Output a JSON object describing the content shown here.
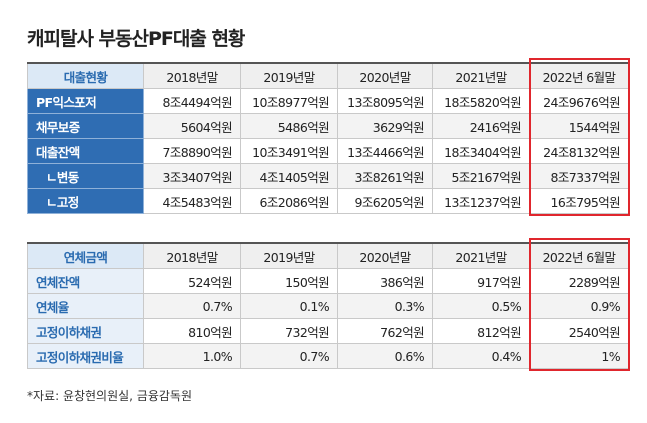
{
  "title": "캐피탈사 부동산PF대출 현황",
  "table1": {
    "header": [
      "대출현황",
      "2018년말",
      "2019년말",
      "2020년말",
      "2021년말",
      "2022년 6월말"
    ],
    "rows": [
      [
        "PF익스포저",
        "8조4494억원",
        "10조8977억원",
        "13조8095억원",
        "18조5820억원",
        "24조9676억원"
      ],
      [
        "채무보증",
        "5604억원",
        "5486억원",
        "3629억원",
        "2416억원",
        "1544억원"
      ],
      [
        "대출잔액",
        "7조8890억원",
        "10조3491억원",
        "13조4466억원",
        "18조3404억원",
        "24조8132억원"
      ],
      [
        "ㄴ변동",
        "3조3407억원",
        "4조1405억원",
        "3조8261억원",
        "5조2167억원",
        "8조7337억원"
      ],
      [
        "ㄴ고정",
        "4조5483억원",
        "6조2086억원",
        "9조6205억원",
        "13조1237억원",
        "16조795억원"
      ]
    ]
  },
  "table2": {
    "header": [
      "연체금액",
      "2018년말",
      "2019년말",
      "2020년말",
      "2021년말",
      "2022년 6월말"
    ],
    "rows": [
      [
        "연체잔액",
        "524억원",
        "150억원",
        "386억원",
        "917억원",
        "2289억원"
      ],
      [
        "연체율",
        "0.7%",
        "0.1%",
        "0.3%",
        "0.5%",
        "0.9%"
      ],
      [
        "고정이하채권",
        "810억원",
        "732억원",
        "762억원",
        "812억원",
        "2540억원"
      ],
      [
        "고정이하채권비율",
        "1.0%",
        "0.7%",
        "0.6%",
        "0.4%",
        "1%"
      ]
    ]
  },
  "source": "*자료: 윤창현의원실, 금융감독원"
}
